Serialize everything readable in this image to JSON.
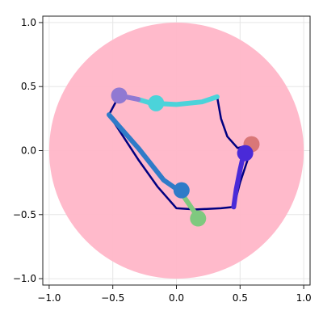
{
  "chart_data": {
    "type": "scatter",
    "title": "",
    "xlabel": "",
    "ylabel": "",
    "xlim": [
      -1.05,
      1.05
    ],
    "ylim": [
      -1.05,
      1.05
    ],
    "grid": true,
    "x_ticks": [
      -1.0,
      -0.5,
      0.0,
      0.5,
      1.0
    ],
    "y_ticks": [
      -1.0,
      -0.5,
      0.0,
      0.5,
      1.0
    ],
    "x_tick_labels": [
      "−1.0",
      "−0.5",
      "0.0",
      "0.5",
      "1.0"
    ],
    "y_tick_labels": [
      "−1.0",
      "−0.5",
      "0.0",
      "0.5",
      "1.0"
    ],
    "disk": {
      "center": [
        0,
        0
      ],
      "radius": 1.0,
      "color": "#ffb6c8"
    },
    "path_color": "#000080",
    "path": [
      [
        0.32,
        0.42
      ],
      [
        0.35,
        0.25
      ],
      [
        0.4,
        0.11
      ],
      [
        0.48,
        0.02
      ],
      [
        0.6,
        0.05
      ],
      [
        0.55,
        -0.1
      ],
      [
        0.5,
        -0.25
      ],
      [
        0.45,
        -0.44
      ],
      [
        0.35,
        -0.45
      ],
      [
        0.15,
        -0.46
      ],
      [
        0.0,
        -0.45
      ],
      [
        -0.15,
        -0.28
      ],
      [
        -0.3,
        -0.07
      ],
      [
        -0.53,
        0.28
      ],
      [
        -0.45,
        0.43
      ],
      [
        -0.3,
        0.4
      ],
      [
        -0.15,
        0.36
      ],
      [
        0.0,
        0.36
      ],
      [
        0.2,
        0.38
      ],
      [
        0.32,
        0.42
      ]
    ],
    "thick_segments": [
      {
        "color": "#4bd3da",
        "points": [
          [
            -0.3,
            0.4
          ],
          [
            -0.2,
            0.37
          ],
          [
            0.0,
            0.36
          ],
          [
            0.2,
            0.38
          ],
          [
            0.32,
            0.42
          ]
        ]
      },
      {
        "color": "#9079d2",
        "points": [
          [
            -0.45,
            0.43
          ],
          [
            -0.3,
            0.4
          ]
        ]
      },
      {
        "color": "#2f7bc8",
        "points": [
          [
            -0.53,
            0.28
          ],
          [
            -0.3,
            0.02
          ],
          [
            -0.1,
            -0.23
          ],
          [
            0.03,
            -0.32
          ]
        ]
      },
      {
        "color": "#7fc97f",
        "points": [
          [
            0.03,
            -0.32
          ],
          [
            0.1,
            -0.42
          ],
          [
            0.17,
            -0.52
          ]
        ]
      },
      {
        "color": "#4a2ad8",
        "points": [
          [
            0.45,
            -0.44
          ],
          [
            0.47,
            -0.3
          ],
          [
            0.5,
            -0.15
          ],
          [
            0.53,
            -0.02
          ]
        ]
      }
    ],
    "markers": [
      {
        "x": -0.45,
        "y": 0.43,
        "color": "#9079d2"
      },
      {
        "x": -0.16,
        "y": 0.37,
        "color": "#4bd3da"
      },
      {
        "x": 0.59,
        "y": 0.05,
        "color": "#d97777"
      },
      {
        "x": 0.54,
        "y": -0.02,
        "color": "#4a2ad8"
      },
      {
        "x": 0.04,
        "y": -0.31,
        "color": "#2f7bc8"
      },
      {
        "x": 0.17,
        "y": -0.53,
        "color": "#7fc97f"
      }
    ]
  }
}
